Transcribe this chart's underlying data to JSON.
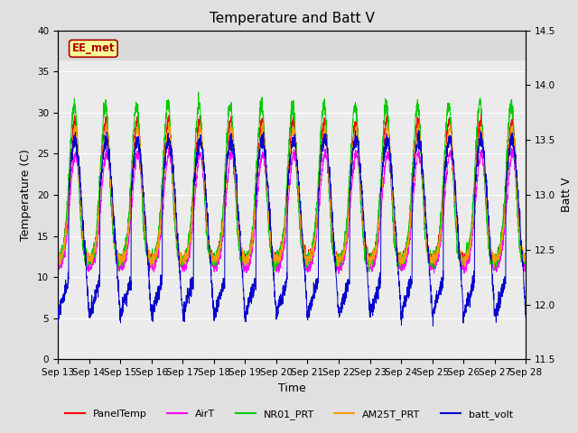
{
  "title": "Temperature and Batt V",
  "xlabel": "Time",
  "ylabel_left": "Temperature (C)",
  "ylabel_right": "Batt V",
  "annotation": "EE_met",
  "ylim_left": [
    0,
    40
  ],
  "ylim_right": [
    11.5,
    14.5
  ],
  "x_ticks": [
    "Sep 13",
    "Sep 14",
    "Sep 15",
    "Sep 16",
    "Sep 17",
    "Sep 18",
    "Sep 19",
    "Sep 20",
    "Sep 21",
    "Sep 22",
    "Sep 23",
    "Sep 24",
    "Sep 25",
    "Sep 26",
    "Sep 27",
    "Sep 28"
  ],
  "series_colors": {
    "PanelTemp": "#ff0000",
    "AirT": "#ff00ff",
    "NR01_PRT": "#00cc00",
    "AM25T_PRT": "#ff9900",
    "batt_volt": "#0000cc"
  },
  "legend_labels": [
    "PanelTemp",
    "AirT",
    "NR01_PRT",
    "AM25T_PRT",
    "batt_volt"
  ],
  "background_color": "#e0e0e0",
  "plot_bg_color": "#ebebeb",
  "grid_color": "#ffffff",
  "title_fontsize": 11,
  "axis_fontsize": 9,
  "tick_fontsize": 7.5,
  "yticks_left": [
    0,
    5,
    10,
    15,
    20,
    25,
    30,
    35,
    40
  ],
  "yticks_right": [
    11.5,
    12.0,
    12.5,
    13.0,
    13.5,
    14.0,
    14.5
  ]
}
